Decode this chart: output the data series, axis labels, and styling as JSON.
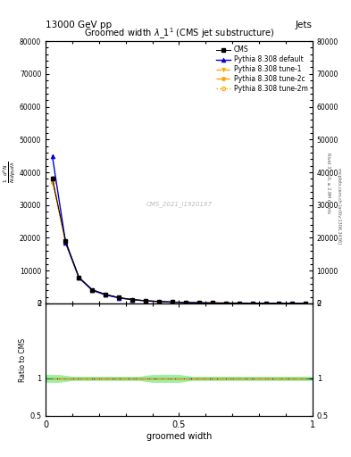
{
  "title": "Groomed width $\\lambda$_1$^1$ (CMS jet substructure)",
  "header_left": "13000 GeV pp",
  "header_right": "Jets",
  "right_label1": "Rivet 3.1.10, ≥ 2.9M events",
  "right_label2": "mcplots.cern.ch [arXiv:1306.3436]",
  "watermark": "CMS_2021_I1920187",
  "xlabel": "groomed width",
  "ylabel_lines": [
    "$\\frac{1}{\\mathrm{N}}\\frac{\\mathrm{d}^2\\mathrm{N}}{\\mathrm{d}\\,p_\\mathrm{T}\\,\\mathrm{d}\\,\\lambda}$"
  ],
  "ylabel_ratio": "Ratio to CMS",
  "xlim": [
    0.0,
    1.0
  ],
  "ylim_main": [
    0,
    80000
  ],
  "ylim_ratio": [
    0.5,
    2.0
  ],
  "x_data": [
    0.025,
    0.075,
    0.125,
    0.175,
    0.225,
    0.275,
    0.325,
    0.375,
    0.425,
    0.475,
    0.525,
    0.575,
    0.625,
    0.675,
    0.725,
    0.775,
    0.825,
    0.875,
    0.925,
    0.975
  ],
  "cms_y": [
    38000,
    19000,
    8000,
    4200,
    2800,
    1800,
    1200,
    850,
    600,
    420,
    300,
    210,
    160,
    120,
    95,
    75,
    58,
    45,
    35,
    28
  ],
  "pythia_default_y": [
    45000,
    18500,
    7800,
    4000,
    2600,
    1700,
    1150,
    800,
    570,
    400,
    285,
    200,
    152,
    115,
    90,
    70,
    54,
    42,
    33,
    26
  ],
  "pythia_tune1_y": [
    38000,
    18800,
    7900,
    4100,
    2650,
    1720,
    1160,
    810,
    575,
    405,
    290,
    203,
    154,
    117,
    91,
    71,
    55,
    43,
    34,
    27
  ],
  "pythia_tune2c_y": [
    38500,
    18600,
    7850,
    4050,
    2620,
    1710,
    1155,
    805,
    572,
    402,
    288,
    201,
    153,
    116,
    90.5,
    70.5,
    54.5,
    42.5,
    33.5,
    26.5
  ],
  "pythia_tune2m_y": [
    37000,
    18400,
    7750,
    4000,
    2600,
    1700,
    1145,
    795,
    565,
    398,
    285,
    199,
    151,
    115,
    89.5,
    69.5,
    53.5,
    41.5,
    32.5,
    25.5
  ],
  "color_default": "#0000dd",
  "color_tune1": "#ffa500",
  "color_tune2c": "#ffa500",
  "color_tune2m": "#ffa500",
  "color_cms": "#000000",
  "bg_color": "#ffffff",
  "legend_labels": [
    "CMS",
    "Pythia 8.308 default",
    "Pythia 8.308 tune-1",
    "Pythia 8.308 tune-2c",
    "Pythia 8.308 tune-2m"
  ],
  "yticks_main": [
    0,
    10000,
    20000,
    30000,
    40000,
    50000,
    60000,
    70000,
    80000
  ],
  "ytick_labels_main": [
    "0",
    "10000",
    "20000",
    "30000",
    "40000",
    "50000",
    "60000",
    "70000",
    "80000"
  ],
  "yticks_ratio": [
    0.5,
    1.0,
    2.0
  ],
  "ytick_labels_ratio": [
    "0.5",
    "1",
    "2"
  ],
  "xticks": [
    0.0,
    0.5,
    1.0
  ],
  "xtick_labels": [
    "0",
    "0.5",
    "1"
  ]
}
